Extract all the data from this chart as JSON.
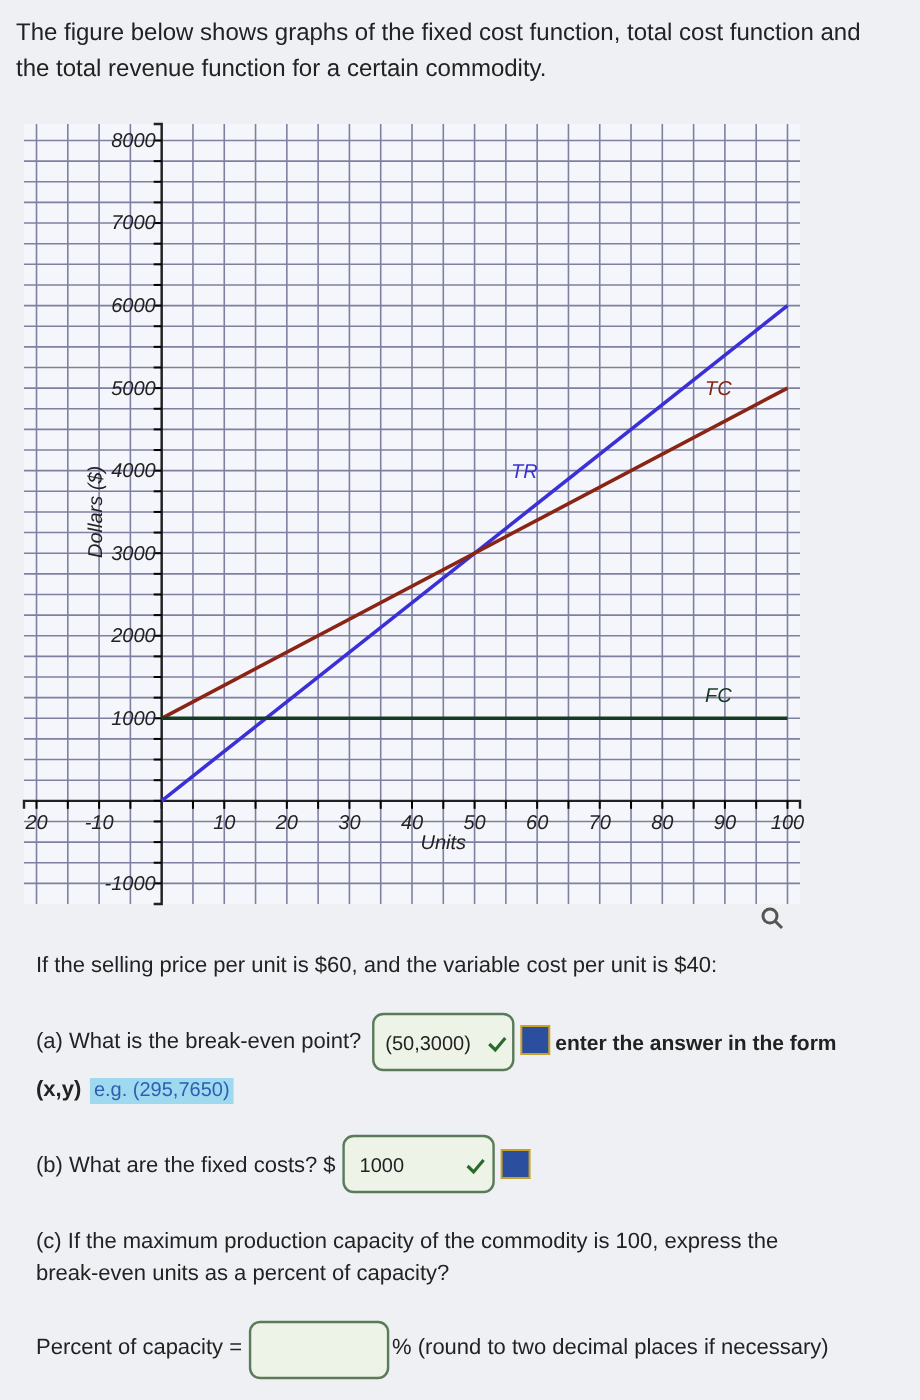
{
  "chart_data": {
    "type": "line",
    "title": "The figure below shows graphs of the fixed cost function, total cost function and the total revenue function for a certain commodity.",
    "xlabel": "Units",
    "ylabel": "Dollars ($)",
    "xlim": [
      -22,
      102
    ],
    "ylim": [
      -1250,
      8200
    ],
    "xticks": [
      {
        "value": -20,
        "label": "20"
      },
      {
        "value": -15,
        "label": null
      },
      -10,
      {
        "value": -5,
        "label": null
      },
      {
        "value": 0,
        "label": null
      },
      {
        "value": 5,
        "label": null
      },
      10,
      {
        "value": 15,
        "label": null
      },
      20,
      {
        "value": 25,
        "label": null
      },
      30,
      {
        "value": 35,
        "label": null
      },
      40,
      {
        "value": 45,
        "label": null
      },
      50,
      {
        "value": 55,
        "label": null
      },
      60,
      {
        "value": 65,
        "label": null
      },
      70,
      {
        "value": 75,
        "label": null
      },
      80,
      {
        "value": 85,
        "label": null
      },
      90,
      {
        "value": 95,
        "label": null
      },
      100
    ],
    "yticks": [
      {
        "value": -1000,
        "label": "-1000"
      },
      {
        "value": -750,
        "label": null
      },
      {
        "value": -500,
        "label": null
      },
      {
        "value": -250,
        "label": null
      },
      {
        "value": 0,
        "label": null
      },
      {
        "value": 250,
        "label": null
      },
      {
        "value": 500,
        "label": null
      },
      {
        "value": 750,
        "label": null
      },
      1000,
      {
        "value": 1250,
        "label": null
      },
      {
        "value": 1500,
        "label": null
      },
      {
        "value": 1750,
        "label": null
      },
      2000,
      {
        "value": 2250,
        "label": null
      },
      {
        "value": 2500,
        "label": null
      },
      {
        "value": 2750,
        "label": null
      },
      3000,
      {
        "value": 3250,
        "label": null
      },
      {
        "value": 3500,
        "label": null
      },
      {
        "value": 3750,
        "label": null
      },
      4000,
      {
        "value": 4250,
        "label": null
      },
      {
        "value": 4500,
        "label": null
      },
      {
        "value": 4750,
        "label": null
      },
      5000,
      {
        "value": 5250,
        "label": null
      },
      {
        "value": 5500,
        "label": null
      },
      {
        "value": 5750,
        "label": null
      },
      6000,
      {
        "value": 6250,
        "label": null
      },
      {
        "value": 6500,
        "label": null
      },
      {
        "value": 6750,
        "label": null
      },
      7000,
      {
        "value": 7250,
        "label": null
      },
      {
        "value": 7500,
        "label": null
      },
      {
        "value": 7750,
        "label": null
      },
      8000
    ],
    "grid": true,
    "x": [
      0,
      100
    ],
    "series": [
      {
        "name": "TR",
        "color": "#3b2fd6",
        "values": [
          0,
          6000
        ]
      },
      {
        "name": "TC",
        "color": "#8a2414",
        "values": [
          1000,
          5000
        ]
      },
      {
        "name": "FC",
        "color": "#163a22",
        "values": [
          1000,
          1000
        ]
      }
    ],
    "annotations": [
      "If the selling price per unit is $60, and the variable cost per unit is $40:",
      "(a) What is the break-even point?",
      "(50,3000)",
      "enter the answer in the form",
      "(x,y)",
      "e.g. (295,7650)",
      "(b) What are the fixed costs? $",
      "1000",
      "(c) If the maximum production capacity of the commodity is 100, express the break-even units as a percent of capacity?",
      "Percent of capacity =",
      "% (round to two decimal places if necessary)"
    ]
  }
}
